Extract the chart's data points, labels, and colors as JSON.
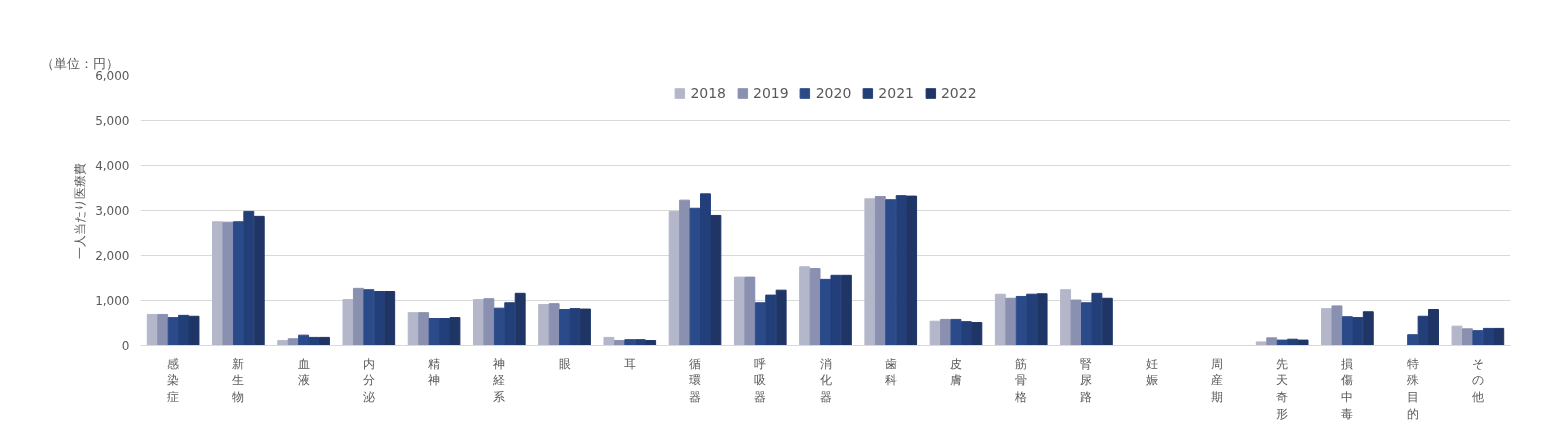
{
  "chart_data": {
    "type": "bar",
    "ylabel": "一人当たり医療費",
    "annotations": [
      "（単位：円）"
    ],
    "categories": [
      "感染症",
      "新生物",
      "血液",
      "内分泌",
      "精神",
      "神経系",
      "眼",
      "耳",
      "循環器",
      "呼吸器",
      "消化器",
      "歯科",
      "皮膚",
      "筋骨格",
      "腎尿路",
      "妊娠",
      "周産期",
      "先天奇形",
      "損傷中毒",
      "特殊目的",
      "その他"
    ],
    "series": [
      {
        "name": "2018",
        "color": "#b4b7ca",
        "values": [
          690,
          2750,
          110,
          1020,
          730,
          1020,
          910,
          180,
          2980,
          1520,
          1750,
          3260,
          540,
          1140,
          1240,
          0,
          0,
          80,
          820,
          null,
          430
        ]
      },
      {
        "name": "2019",
        "color": "#8a90b0",
        "values": [
          690,
          2740,
          150,
          1270,
          730,
          1040,
          930,
          110,
          3230,
          1520,
          1710,
          3310,
          580,
          1050,
          1010,
          0,
          0,
          170,
          880,
          null,
          370
        ]
      },
      {
        "name": "2020",
        "color": "#2a4a8a",
        "values": [
          620,
          2750,
          230,
          1240,
          600,
          830,
          800,
          130,
          3050,
          950,
          1470,
          3240,
          580,
          1090,
          950,
          0,
          0,
          120,
          640,
          240,
          330
        ]
      },
      {
        "name": "2021",
        "color": "#233f7a",
        "values": [
          670,
          2980,
          180,
          1200,
          600,
          950,
          820,
          130,
          3370,
          1120,
          1560,
          3330,
          530,
          1140,
          1160,
          0,
          0,
          140,
          620,
          650,
          380
        ]
      },
      {
        "name": "2022",
        "color": "#1f3566",
        "values": [
          650,
          2870,
          180,
          1200,
          620,
          1160,
          810,
          110,
          2890,
          1230,
          1560,
          3320,
          510,
          1150,
          1050,
          0,
          0,
          120,
          750,
          800,
          380
        ]
      }
    ],
    "ylim": [
      0,
      6000
    ],
    "yticks": [
      {
        "value": 0,
        "label": "0"
      },
      {
        "value": 1000,
        "label": "1,000"
      },
      {
        "value": 2000,
        "label": "2,000"
      },
      {
        "value": 3000,
        "label": "3,000"
      },
      {
        "value": 4000,
        "label": "4,000"
      },
      {
        "value": 5000,
        "label": "5,000"
      },
      {
        "value": 6000,
        "label": "6,000"
      }
    ],
    "grid": "y",
    "legend": "top"
  }
}
